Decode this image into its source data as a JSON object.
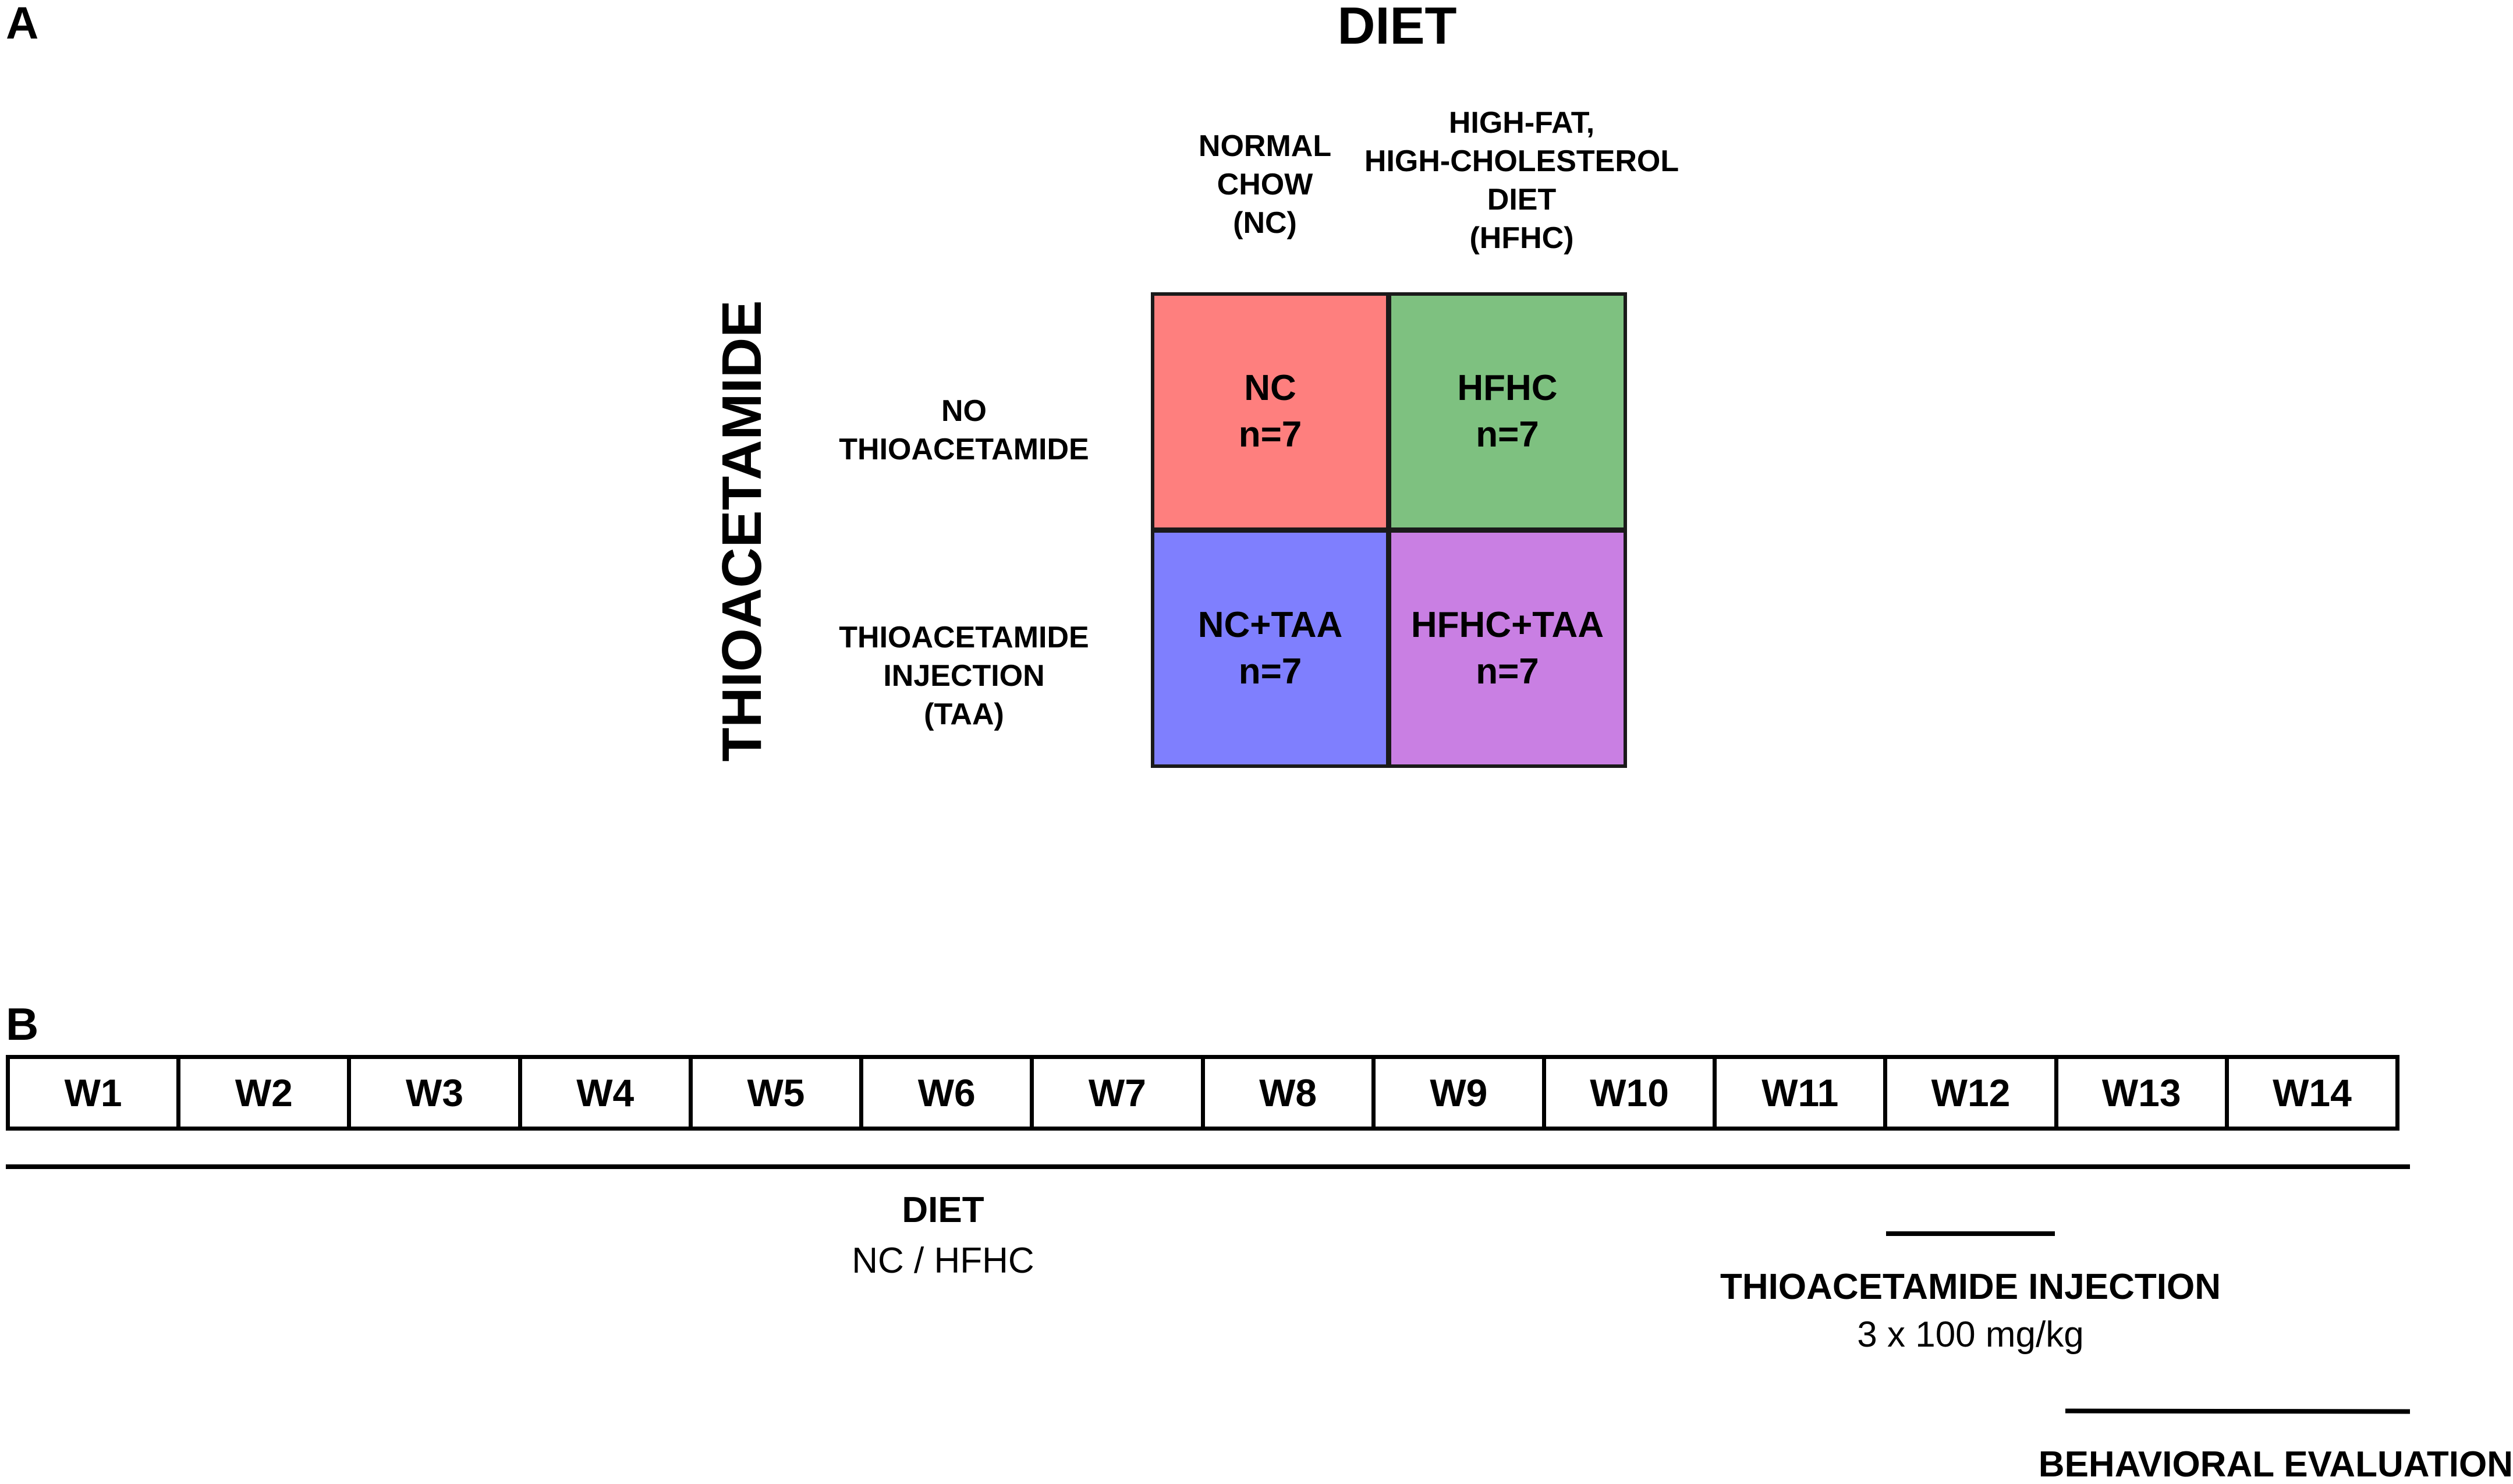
{
  "panel_a": {
    "label": "A",
    "diet_heading": "DIET",
    "taa_heading": "THIOACETAMIDE",
    "columns": [
      {
        "lines": [
          "NORMAL",
          "CHOW",
          "(NC)"
        ]
      },
      {
        "lines": [
          "HIGH-FAT,",
          "HIGH-CHOLESTEROL",
          "DIET",
          "(HFHC)"
        ]
      }
    ],
    "rows": [
      {
        "lines": [
          "NO",
          "THIOACETAMIDE"
        ]
      },
      {
        "lines": [
          "THIOACETAMIDE",
          "INJECTION",
          "(TAA)"
        ]
      }
    ],
    "cells": [
      {
        "name": "NC",
        "n": "n=7",
        "color": "#fe7f7e"
      },
      {
        "name": "HFHC",
        "n": "n=7",
        "color": "#7ec180"
      },
      {
        "name": "NC+TAA",
        "n": "n=7",
        "color": "#7f7ffe"
      },
      {
        "name": "HFHC+TAA",
        "n": "n=7",
        "color": "#c97fe3"
      }
    ]
  },
  "panel_b": {
    "label": "B",
    "weeks": [
      "W1",
      "W2",
      "W3",
      "W4",
      "W5",
      "W6",
      "W7",
      "W8",
      "W9",
      "W10",
      "W11",
      "W12",
      "W13",
      "W14"
    ],
    "diet_label": "DIET",
    "diet_sub": "NC / HFHC",
    "taa_label": "THIOACETAMIDE INJECTION",
    "taa_sub": "3 x 100 mg/kg",
    "behavior_label": "BEHAVIORAL EVALUATION"
  }
}
